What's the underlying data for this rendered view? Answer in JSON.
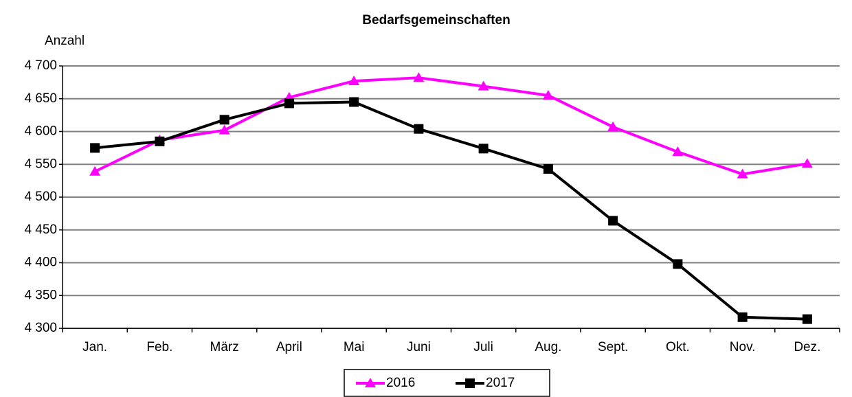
{
  "chart_data": {
    "type": "line",
    "title": "Bedarfsgemeinschaften",
    "ylabel": "Anzahl",
    "categories": [
      "Jan.",
      "Feb.",
      "März",
      "April",
      "Mai",
      "Juni",
      "Juli",
      "Aug.",
      "Sept.",
      "Okt.",
      "Nov.",
      "Dez."
    ],
    "series": [
      {
        "name": "2016",
        "color": "#ff00ff",
        "marker": "triangle",
        "values": [
          4539,
          4587,
          4602,
          4652,
          4677,
          4682,
          4669,
          4655,
          4607,
          4569,
          4535,
          4551
        ]
      },
      {
        "name": "2017",
        "color": "#000000",
        "marker": "square",
        "values": [
          4575,
          4585,
          4618,
          4643,
          4645,
          4604,
          4574,
          4543,
          4464,
          4398,
          4317,
          4314
        ]
      }
    ],
    "ylim": [
      4300,
      4700
    ],
    "yticks": [
      {
        "value": 4300,
        "label": "4 300"
      },
      {
        "value": 4350,
        "label": "4 350"
      },
      {
        "value": 4400,
        "label": "4 400"
      },
      {
        "value": 4450,
        "label": "4 450"
      },
      {
        "value": 4500,
        "label": "4 500"
      },
      {
        "value": 4550,
        "label": "4 550"
      },
      {
        "value": 4600,
        "label": "4 600"
      },
      {
        "value": 4650,
        "label": "4 650"
      },
      {
        "value": 4700,
        "label": "4 700"
      }
    ],
    "grid": true,
    "legend": "bottom"
  }
}
